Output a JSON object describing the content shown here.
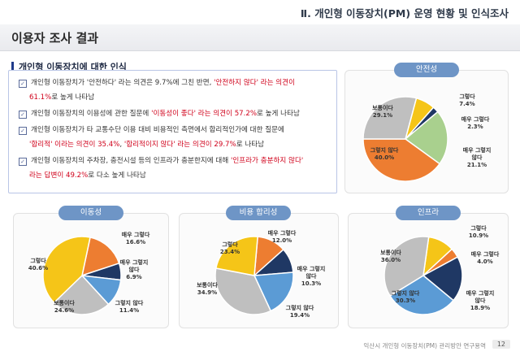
{
  "header": {
    "chapter": "Ⅱ. 개인형 이동장치(PM) 운영 현황 및 인식조사"
  },
  "page_title": "이용자 조사 결과",
  "section_title": "개인형 이동장치에 대한 인식",
  "summary": [
    {
      "text": "개인형 이동장치가 '안전하다' 라는 의견은 9.7%에 그친 반면, ",
      "hl": "'안전하지 않다' 라는 의견이"
    },
    {
      "cont": "61.1%로 높게 나타남",
      "cont_hl": "61.1%"
    },
    {
      "text": "개인형 이동장치의 이용성에 관한 질문에 ",
      "hl": "'이동성이 좋다' 라는 의견이 57.2%",
      "after": "로 높게 나타남"
    },
    {
      "text": "개인형 이동장치가 타 교통수단 이용 대비 비용적인 측면에서 합리적인가에 대한 질문에"
    },
    {
      "cont_parts": [
        "'합리적' 이라는 의견이 35.4%",
        ", ",
        "'합리적이지 않다' 라는 의견이 29.7%",
        "로 나타남"
      ]
    },
    {
      "text": "개인형 이동장치의 주차장, 충전시설 등의 인프라가 충분한지에 대해 ",
      "hl": "'인프라가 충분하지 않다'"
    },
    {
      "cont_parts": [
        "라는 답변이 49.2%",
        "로 다소 높게 나타남"
      ]
    }
  ],
  "chart_data": [
    {
      "type": "pie",
      "title": "안전성",
      "slices": [
        {
          "label": "그렇다",
          "value": 7.4,
          "color": "#f5c518"
        },
        {
          "label": "매우 그렇다",
          "value": 2.3,
          "color": "#1f3864"
        },
        {
          "label": "매우 그렇지 않다",
          "value": 21.1,
          "color": "#a9d08e"
        },
        {
          "label": "그렇지 않다",
          "value": 40.0,
          "color": "#ed7d31"
        },
        {
          "label": "보통이다",
          "value": 29.1,
          "color": "#bfbfbf"
        }
      ]
    },
    {
      "type": "pie",
      "title": "이동성",
      "slices": [
        {
          "label": "매우 그렇다",
          "value": 16.6,
          "color": "#ed7d31"
        },
        {
          "label": "매우 그렇지 않다",
          "value": 6.9,
          "color": "#1f3864"
        },
        {
          "label": "그렇지 않다",
          "value": 11.4,
          "color": "#5b9bd5"
        },
        {
          "label": "보통이다",
          "value": 24.6,
          "color": "#bfbfbf"
        },
        {
          "label": "그렇다",
          "value": 40.6,
          "color": "#f5c518"
        }
      ]
    },
    {
      "type": "pie",
      "title": "비용 합리성",
      "slices": [
        {
          "label": "매우 그렇다",
          "value": 12.0,
          "color": "#ed7d31"
        },
        {
          "label": "매우 그렇지 않다",
          "value": 10.3,
          "color": "#1f3864"
        },
        {
          "label": "그렇지 않다",
          "value": 19.4,
          "color": "#5b9bd5"
        },
        {
          "label": "보통이다",
          "value": 34.9,
          "color": "#bfbfbf"
        },
        {
          "label": "그렇다",
          "value": 23.4,
          "color": "#f5c518"
        }
      ]
    },
    {
      "type": "pie",
      "title": "인프라",
      "slices": [
        {
          "label": "그렇다",
          "value": 10.9,
          "color": "#f5c518"
        },
        {
          "label": "매우 그렇다",
          "value": 4.0,
          "color": "#ed7d31"
        },
        {
          "label": "매우 그렇지 않다",
          "value": 18.9,
          "color": "#1f3864"
        },
        {
          "label": "그렇지 않다",
          "value": 30.3,
          "color": "#5b9bd5"
        },
        {
          "label": "보통이다",
          "value": 36.0,
          "color": "#bfbfbf"
        }
      ]
    }
  ],
  "pie_labels": [
    [
      "그렇다\n7.4%",
      "매우 그렇다\n2.3%",
      "매우 그렇지\n않다\n21.1%",
      "그렇지 않다\n40.0%",
      "보통이다\n29.1%"
    ],
    [
      "매우 그렇다\n16.6%",
      "매우 그렇지\n않다\n6.9%",
      "그렇지 않다\n11.4%",
      "보통이다\n24.6%",
      "그렇다\n40.6%"
    ],
    [
      "매우 그렇다\n12.0%",
      "매우 그렇지\n않다\n10.3%",
      "그렇지 않다\n19.4%",
      "보통이다\n34.9%",
      "그렇다\n23.4%"
    ],
    [
      "그렇다\n10.9%",
      "매우 그렇다\n4.0%",
      "매우 그렇지\n않다\n18.9%",
      "그렇지 않다\n30.3%",
      "보통이다\n36.0%"
    ]
  ],
  "footer": {
    "note": "익산시 개인형 이동장치(PM) 관리방안 연구용역",
    "page": "12"
  }
}
